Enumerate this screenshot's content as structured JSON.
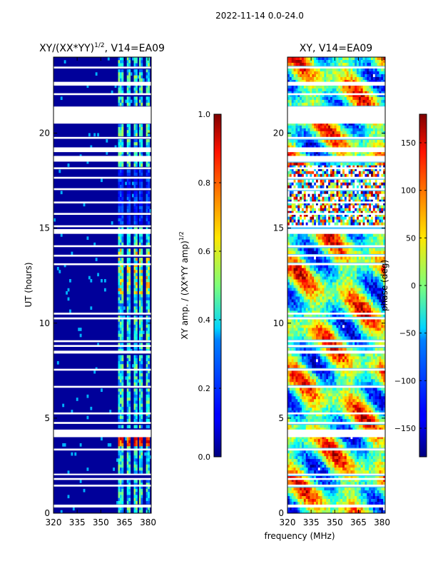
{
  "figure": {
    "suptitle": "2022-11-14 0.0-24.0",
    "xlabel_shared": "frequency (MHz)"
  },
  "chart_data": [
    {
      "type": "heatmap",
      "title_main": "XY/(XX*YY)",
      "title_sup": "1/2",
      "title_tail": ", V14=EA09",
      "ylabel": "UT (hours)",
      "xlim": [
        320,
        382
      ],
      "ylim": [
        0,
        24
      ],
      "x_ticks": [
        320,
        335,
        350,
        365,
        380
      ],
      "y_ticks": [
        0,
        5,
        10,
        15,
        20
      ],
      "colormap": "jet",
      "band_columns_mhz": [
        [
          361,
          364.5
        ],
        [
          366,
          369
        ],
        [
          370.5,
          373.5
        ],
        [
          374.5,
          377
        ],
        [
          378.5,
          381
        ]
      ],
      "colorbar": {
        "label_main": "XY amp. / (XX*YY amp)",
        "label_sup": "1/2",
        "range": [
          0.0,
          1.0
        ],
        "ticks": [
          "0.0",
          "0.2",
          "0.4",
          "0.6",
          "0.8",
          "1.0"
        ],
        "tick_values": [
          0.0,
          0.2,
          0.4,
          0.6,
          0.8,
          1.0
        ]
      }
    },
    {
      "type": "heatmap",
      "title": "XY, V14=EA09",
      "xlim": [
        320,
        382
      ],
      "ylim": [
        0,
        24
      ],
      "x_ticks": [
        320,
        335,
        350,
        365,
        380
      ],
      "y_ticks": [
        0,
        5,
        10,
        15,
        20
      ],
      "colormap": "jet",
      "colorbar": {
        "label": "phase (deg)",
        "range": [
          -180,
          180
        ],
        "ticks": [
          "−150",
          "−100",
          "−50",
          "0",
          "50",
          "100",
          "150"
        ],
        "tick_values": [
          -150,
          -100,
          -50,
          0,
          50,
          100,
          150
        ]
      }
    }
  ],
  "flagged_hours": [
    [
      0.3,
      0.45
    ],
    [
      1.4,
      1.5
    ],
    [
      1.75,
      1.85
    ],
    [
      2.0,
      2.08
    ],
    [
      3.3,
      3.4
    ],
    [
      4.0,
      4.4
    ],
    [
      4.7,
      4.8
    ],
    [
      5.2,
      5.3
    ],
    [
      6.6,
      6.7
    ],
    [
      7.5,
      7.6
    ],
    [
      8.4,
      8.55
    ],
    [
      8.75,
      8.85
    ],
    [
      9.0,
      9.1
    ],
    [
      10.2,
      10.3
    ],
    [
      10.45,
      10.55
    ],
    [
      13.05,
      13.15
    ],
    [
      13.5,
      13.6
    ],
    [
      14.0,
      14.1
    ],
    [
      14.7,
      14.95
    ],
    [
      15.05,
      15.15
    ],
    [
      15.7,
      15.8
    ],
    [
      16.3,
      16.4
    ],
    [
      17.0,
      17.1
    ],
    [
      17.6,
      17.7
    ],
    [
      18.1,
      18.2
    ],
    [
      18.5,
      18.8
    ],
    [
      19.0,
      19.25
    ],
    [
      19.7,
      19.8
    ],
    [
      20.5,
      21.4
    ],
    [
      22.0,
      22.1
    ],
    [
      22.5,
      22.7
    ],
    [
      23.4,
      23.5
    ]
  ],
  "noise_zone_hours": [
    15.0,
    18.3
  ]
}
